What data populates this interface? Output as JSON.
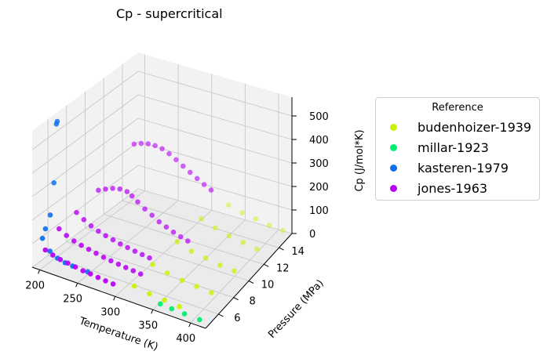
{
  "chart_data": {
    "type": "scatter",
    "projection": "3d",
    "title": "Cp - supercritical",
    "xlabel": "Temperature (K)",
    "ylabel": "Pressure (MPa)",
    "zlabel": "Cp (J/mol*K)",
    "xlim": [
      190,
      420
    ],
    "ylim": [
      4.3,
      15.7
    ],
    "zlim": [
      0,
      580
    ],
    "xticks": [
      200,
      250,
      300,
      350,
      400
    ],
    "yticks": [
      6,
      8,
      10,
      12,
      14
    ],
    "zticks": [
      0,
      100,
      200,
      300,
      400,
      500
    ],
    "grid": true,
    "legend": {
      "title": "Reference",
      "placement": "right"
    },
    "series": [
      {
        "name": "budenhoizer-1939",
        "color": "#ccf000",
        "points": [
          [
            320,
            4.8,
            50
          ],
          [
            340,
            4.8,
            40
          ],
          [
            360,
            4.8,
            35
          ],
          [
            380,
            4.8,
            30
          ],
          [
            320,
            7.0,
            70
          ],
          [
            340,
            7.0,
            55
          ],
          [
            360,
            7.0,
            45
          ],
          [
            380,
            7.0,
            40
          ],
          [
            400,
            7.0,
            35
          ],
          [
            325,
            9.5,
            90
          ],
          [
            345,
            9.5,
            70
          ],
          [
            365,
            9.5,
            60
          ],
          [
            385,
            9.5,
            50
          ],
          [
            405,
            9.5,
            45
          ],
          [
            330,
            12.0,
            110
          ],
          [
            350,
            12.0,
            90
          ],
          [
            370,
            12.0,
            75
          ],
          [
            390,
            12.0,
            65
          ],
          [
            410,
            12.0,
            55
          ],
          [
            340,
            14.5,
            95
          ],
          [
            360,
            14.5,
            80
          ],
          [
            380,
            14.5,
            70
          ],
          [
            400,
            14.5,
            60
          ],
          [
            420,
            14.5,
            55
          ]
        ]
      },
      {
        "name": "millar-1923",
        "color": "#00f070",
        "points": [
          [
            360,
            4.3,
            36
          ],
          [
            375,
            4.3,
            32
          ],
          [
            392,
            4.3,
            30
          ],
          [
            412,
            4.3,
            28
          ]
        ]
      },
      {
        "name": "kasteren-1979",
        "color": "#1070f0",
        "points": [
          [
            200,
            4.6,
            125
          ],
          [
            210,
            4.6,
            82
          ],
          [
            220,
            4.6,
            63
          ],
          [
            230,
            4.6,
            55
          ],
          [
            240,
            4.6,
            52
          ],
          [
            260,
            4.6,
            50
          ],
          [
            199,
            5.0,
            153
          ],
          [
            203,
            5.2,
            210
          ],
          [
            198,
            6.0,
            318
          ],
          [
            195,
            6.5,
            550
          ],
          [
            195,
            6.6,
            558
          ]
        ]
      },
      {
        "name": "jones-1963",
        "color": "#b800f8",
        "points": [
          [
            205,
            4.5,
            84
          ],
          [
            215,
            4.5,
            74
          ],
          [
            225,
            4.5,
            66
          ],
          [
            235,
            4.5,
            62
          ],
          [
            245,
            4.5,
            57
          ],
          [
            255,
            4.5,
            52
          ],
          [
            265,
            4.5,
            50
          ],
          [
            275,
            4.5,
            46
          ],
          [
            285,
            4.5,
            43
          ],
          [
            295,
            4.5,
            41
          ],
          [
            205,
            6.0,
            130
          ],
          [
            215,
            6.0,
            112
          ],
          [
            225,
            6.0,
            100
          ],
          [
            235,
            6.0,
            92
          ],
          [
            245,
            6.0,
            86
          ],
          [
            255,
            6.0,
            80
          ],
          [
            265,
            6.0,
            74
          ],
          [
            275,
            6.0,
            70
          ],
          [
            285,
            6.0,
            66
          ],
          [
            295,
            6.0,
            63
          ],
          [
            305,
            6.0,
            60
          ],
          [
            315,
            6.0,
            57
          ],
          [
            210,
            7.5,
            160
          ],
          [
            220,
            7.5,
            140
          ],
          [
            230,
            7.5,
            124
          ],
          [
            240,
            7.5,
            112
          ],
          [
            250,
            7.5,
            103
          ],
          [
            260,
            7.5,
            96
          ],
          [
            270,
            7.5,
            89
          ],
          [
            280,
            7.5,
            84
          ],
          [
            290,
            7.5,
            79
          ],
          [
            300,
            7.5,
            75
          ],
          [
            310,
            7.5,
            71
          ],
          [
            215,
            9.5,
            200
          ],
          [
            225,
            9.5,
            215
          ],
          [
            235,
            9.5,
            228
          ],
          [
            245,
            9.5,
            235
          ],
          [
            255,
            9.5,
            234
          ],
          [
            262,
            9.5,
            222
          ],
          [
            270,
            9.5,
            205
          ],
          [
            280,
            9.5,
            185
          ],
          [
            290,
            9.5,
            168
          ],
          [
            300,
            9.5,
            150
          ],
          [
            310,
            9.5,
            138
          ],
          [
            320,
            9.5,
            126
          ],
          [
            330,
            9.5,
            116
          ],
          [
            340,
            9.5,
            108
          ],
          [
            240,
            11.5,
            360
          ],
          [
            250,
            11.5,
            372
          ],
          [
            260,
            11.5,
            380
          ],
          [
            270,
            11.5,
            382
          ],
          [
            280,
            11.5,
            378
          ],
          [
            290,
            11.5,
            366
          ],
          [
            300,
            11.5,
            350
          ],
          [
            310,
            11.5,
            332
          ],
          [
            320,
            11.5,
            315
          ],
          [
            330,
            11.5,
            298
          ],
          [
            340,
            11.5,
            282
          ],
          [
            350,
            11.5,
            268
          ]
        ]
      }
    ]
  }
}
